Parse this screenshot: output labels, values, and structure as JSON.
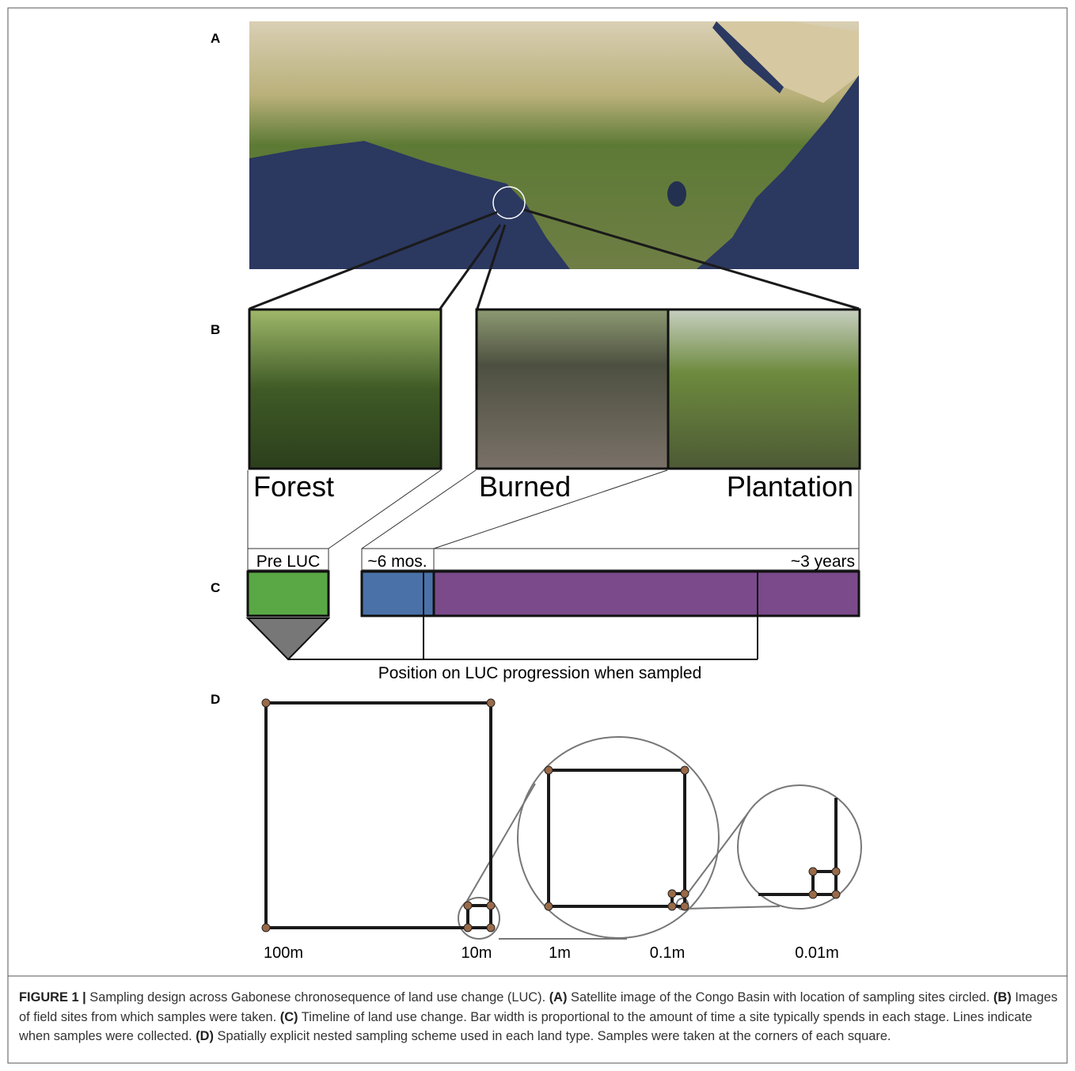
{
  "panels": {
    "a": "A",
    "b": "B",
    "c": "C",
    "d": "D"
  },
  "sites": {
    "forest": "Forest",
    "burned": "Burned",
    "plantation": "Plantation"
  },
  "timeline": {
    "pre": "Pre LUC",
    "burned": "~6 mos.",
    "plantation": "~3 years",
    "note": "Position on LUC progression when sampled"
  },
  "scales": [
    "100m",
    "10m",
    "1m",
    "0.1m",
    "0.01m"
  ],
  "caption": [
    {
      "text": "FIGURE 1 |",
      "bold": true
    },
    {
      "text": " Sampling design across Gabonese chronosequence of land use change (LUC). ",
      "bold": false
    },
    {
      "text": "(A)",
      "bold": true
    },
    {
      "text": " Satellite image of the Congo Basin with location of sampling sites circled. ",
      "bold": false
    },
    {
      "text": "(B)",
      "bold": true
    },
    {
      "text": " Images of field sites from which samples were taken. ",
      "bold": false
    },
    {
      "text": "(C)",
      "bold": true
    },
    {
      "text": " Timeline of land use change. Bar width is proportional to the amount of time a site typically spends in each stage. Lines indicate when samples were collected. ",
      "bold": false
    },
    {
      "text": "(D)",
      "bold": true
    },
    {
      "text": " Spatially explicit nested sampling scheme used in each land type. Samples were taken at the corners of each square.",
      "bold": false
    }
  ]
}
